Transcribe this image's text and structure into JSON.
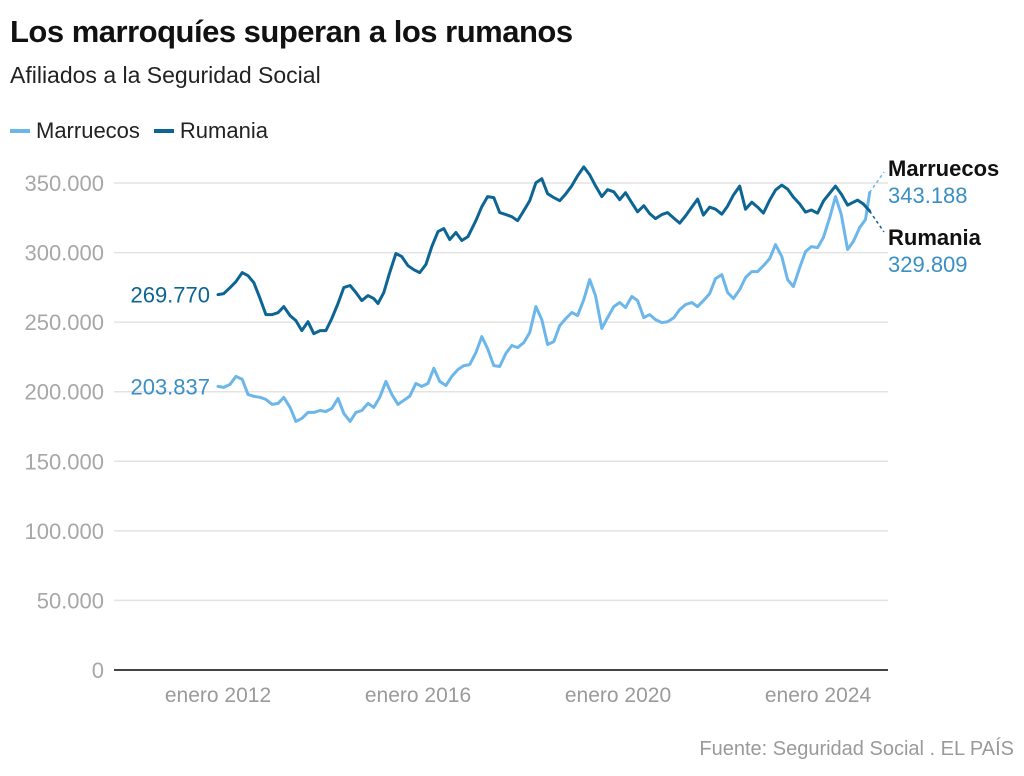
{
  "header": {
    "title": "Los marroquíes superan a los rumanos",
    "subtitle": "Afiliados a la Seguridad Social"
  },
  "legend": [
    {
      "label": "Marruecos",
      "color": "#6cb6ea"
    },
    {
      "label": "Rumania",
      "color": "#0d6594"
    }
  ],
  "source": "Fuente: Seguridad Social . EL PAÍS",
  "chart_data": {
    "type": "line",
    "title": "Los marroquíes superan a los rumanos",
    "subtitle": "Afiliados a la Seguridad Social",
    "xlabel": "",
    "ylabel": "",
    "x_unit": "months since enero 2012",
    "xlim": [
      0,
      157
    ],
    "ylim": [
      0,
      350000
    ],
    "grid": true,
    "legend_position": "top-left",
    "y_ticks": [
      {
        "value": 0,
        "label": "0"
      },
      {
        "value": 50000,
        "label": "50.000"
      },
      {
        "value": 100000,
        "label": "100.000"
      },
      {
        "value": 150000,
        "label": "150.000"
      },
      {
        "value": 200000,
        "label": "200.000"
      },
      {
        "value": 250000,
        "label": "250.000"
      },
      {
        "value": 300000,
        "label": "300.000"
      },
      {
        "value": 350000,
        "label": "350.000"
      }
    ],
    "x_ticks": [
      {
        "value": 0,
        "label": "enero 2012"
      },
      {
        "value": 48,
        "label": "enero 2016"
      },
      {
        "value": 96,
        "label": "enero 2020"
      },
      {
        "value": 144,
        "label": "enero 2024"
      }
    ],
    "series": [
      {
        "name": "Marruecos",
        "color": "#6cb6ea",
        "start_label": "203.837",
        "end_label": "343.188",
        "start_value": 203837,
        "end_value": 343188,
        "x": [
          0,
          1.4,
          2.9,
          4.3,
          5.8,
          7.2,
          8.6,
          10.1,
          11.5,
          13.0,
          14.4,
          15.8,
          17.3,
          18.7,
          20.1,
          21.6,
          23.0,
          24.5,
          25.9,
          27.3,
          28.8,
          30.2,
          31.7,
          33.1,
          34.5,
          36.0,
          37.4,
          38.8,
          40.3,
          41.7,
          43.2,
          44.6,
          46.0,
          47.5,
          48.9,
          50.4,
          51.8,
          53.2,
          54.7,
          56.1,
          57.6,
          59.0,
          60.4,
          61.9,
          63.3,
          64.7,
          66.2,
          67.6,
          69.1,
          70.5,
          71.9,
          73.4,
          74.8,
          76.3,
          77.7,
          79.1,
          80.6,
          82.0,
          83.5,
          84.9,
          86.3,
          87.8,
          89.2,
          90.6,
          92.1,
          93.5,
          95.0,
          96.4,
          97.8,
          99.3,
          100.7,
          102.2,
          103.6,
          105.0,
          106.5,
          107.9,
          109.4,
          110.8,
          112.2,
          113.7,
          115.1,
          116.5,
          118.0,
          119.4,
          120.9,
          122.3,
          123.7,
          125.2,
          126.6,
          128.1,
          129.5,
          130.9,
          132.4,
          133.8,
          135.3,
          136.7,
          138.1,
          139.6,
          141.0,
          142.4,
          143.9,
          145.3,
          146.8,
          148.2,
          149.6,
          151.1,
          152.5,
          154.0,
          155.4,
          156.4
        ],
        "values": [
          203837,
          203100,
          205300,
          211000,
          208900,
          198100,
          196700,
          196000,
          194500,
          190900,
          191600,
          195900,
          188700,
          178700,
          180800,
          185100,
          185100,
          186500,
          185800,
          188000,
          195200,
          184400,
          178700,
          185100,
          186500,
          191600,
          188700,
          195900,
          207400,
          198100,
          190900,
          193800,
          196700,
          206000,
          203800,
          206000,
          216800,
          207400,
          204500,
          211000,
          216000,
          218800,
          219500,
          228100,
          239600,
          231000,
          218800,
          218100,
          227500,
          233200,
          231700,
          235300,
          242500,
          261200,
          251800,
          233900,
          236000,
          247500,
          252600,
          256900,
          254700,
          266200,
          280600,
          269100,
          245400,
          253300,
          261200,
          264100,
          260500,
          268400,
          265500,
          253300,
          255400,
          251800,
          249600,
          250300,
          253200,
          259000,
          262600,
          264100,
          261200,
          265500,
          270500,
          281300,
          284200,
          271300,
          267000,
          273400,
          282000,
          286300,
          286300,
          290600,
          295700,
          305700,
          297100,
          280600,
          275600,
          289200,
          300700,
          304300,
          303600,
          310800,
          325100,
          340200,
          327300,
          302200,
          308000,
          318000,
          323800,
          343188
        ]
      },
      {
        "name": "Rumania",
        "color": "#0d6594",
        "start_label": "269.770",
        "end_label": "329.809",
        "start_value": 269770,
        "end_value": 329809,
        "x": [
          0,
          1.4,
          2.9,
          4.3,
          5.8,
          7.2,
          8.6,
          10.1,
          11.5,
          13.0,
          14.4,
          15.8,
          17.3,
          18.7,
          20.1,
          21.6,
          23.0,
          24.5,
          25.9,
          27.3,
          28.8,
          30.2,
          31.7,
          33.1,
          34.5,
          36.0,
          37.4,
          38.4,
          39.8,
          41.2,
          42.7,
          44.1,
          45.6,
          47.0,
          48.4,
          49.9,
          51.3,
          52.8,
          54.2,
          55.6,
          57.1,
          58.5,
          60.0,
          61.9,
          63.3,
          64.7,
          66.2,
          67.6,
          69.1,
          70.5,
          71.9,
          73.4,
          74.8,
          76.3,
          77.7,
          79.1,
          80.6,
          82.0,
          83.5,
          84.9,
          86.3,
          87.8,
          89.2,
          90.6,
          92.1,
          93.5,
          95.0,
          96.4,
          97.8,
          99.3,
          100.7,
          102.2,
          103.6,
          105.0,
          106.5,
          107.9,
          109.4,
          110.8,
          112.2,
          113.7,
          115.1,
          116.5,
          118.0,
          119.4,
          120.9,
          122.3,
          123.7,
          125.2,
          126.6,
          128.1,
          129.5,
          130.9,
          132.4,
          133.8,
          135.3,
          136.7,
          138.1,
          139.6,
          141.0,
          142.4,
          143.9,
          145.3,
          146.8,
          148.2,
          149.6,
          151.1,
          152.5,
          153.5,
          154.9,
          156.4
        ],
        "values": [
          269770,
          270500,
          274800,
          279100,
          285600,
          283400,
          278400,
          266900,
          255400,
          255400,
          256800,
          261200,
          254700,
          251100,
          243900,
          250300,
          241700,
          243900,
          243900,
          252600,
          263400,
          274800,
          276300,
          271300,
          265500,
          269100,
          266900,
          263400,
          271300,
          285600,
          299300,
          297100,
          290600,
          287700,
          285600,
          291400,
          304300,
          315100,
          317200,
          309300,
          314400,
          308700,
          311500,
          323000,
          333000,
          340200,
          339500,
          328700,
          327300,
          325800,
          322900,
          330100,
          337300,
          350200,
          353100,
          342300,
          339500,
          337300,
          342300,
          348000,
          355200,
          361600,
          355900,
          348000,
          340200,
          345200,
          343700,
          338000,
          343000,
          335800,
          329300,
          333700,
          328000,
          324400,
          327300,
          328700,
          324800,
          321200,
          326300,
          332700,
          338400,
          326900,
          332700,
          331200,
          327600,
          333400,
          341300,
          347800,
          331200,
          336200,
          332700,
          328400,
          337700,
          344900,
          348500,
          345600,
          339900,
          334900,
          329100,
          330600,
          328400,
          337000,
          342700,
          347800,
          342000,
          334100,
          336200,
          337700,
          334900,
          329809
        ]
      }
    ]
  }
}
